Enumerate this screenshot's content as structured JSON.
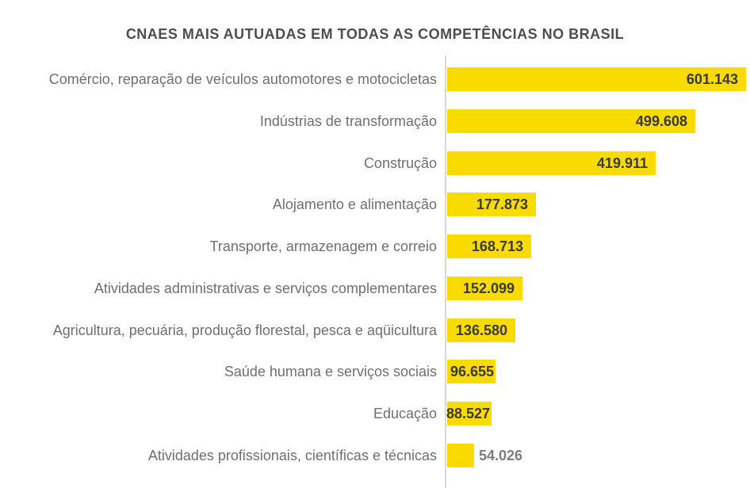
{
  "chart_data": {
    "type": "bar",
    "orientation": "horizontal",
    "title": "CNAES MAIS AUTUADAS EM TODAS AS COMPETÊNCIAS NO BRASIL",
    "categories": [
      "Comércio, reparação de veículos automotores e motocicletas",
      "Indústrias de transformação",
      "Construção",
      "Alojamento e alimentação",
      "Transporte, armazenagem e correio",
      "Atividades administrativas e serviços complementares",
      "Agricultura, pecuária, produção florestal, pesca e aqüicultura",
      "Saúde humana e serviços sociais",
      "Educação",
      "Atividades profissionais, científicas e técnicas"
    ],
    "values": [
      601143,
      499608,
      419911,
      177873,
      168713,
      152099,
      136580,
      96655,
      88527,
      54026
    ],
    "value_labels": [
      "601.143",
      "499.608",
      "419.911",
      "177.873",
      "168.713",
      "152.099",
      "136.580",
      "96.655",
      "88.527",
      "54.026"
    ],
    "xlim": [
      0,
      610000
    ],
    "grid": false,
    "legend": "none",
    "value_label_position": "inside-right, outside for smallest bar"
  },
  "colors": {
    "background": "#FFFFFF",
    "bar": "#FADB00",
    "title_text": "#4D4D4D",
    "category_text": "#6F6F6F",
    "value_text": "#3A3A3A",
    "value_text_outside": "#7D7D7D",
    "axis_line": "#D9D9D9"
  }
}
